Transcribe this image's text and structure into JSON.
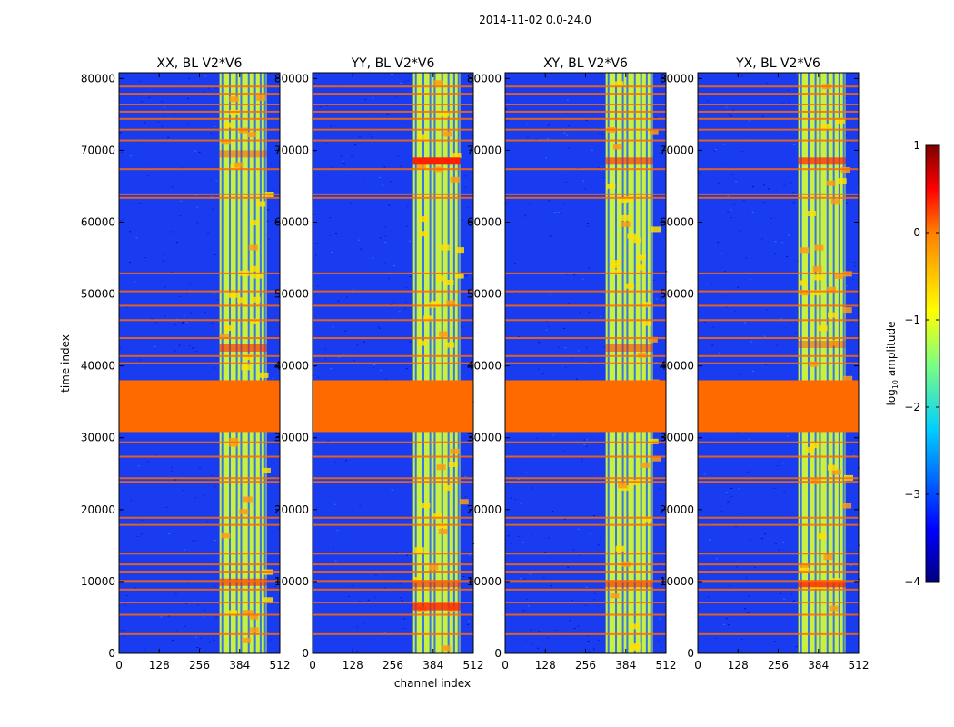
{
  "chart_data": {
    "type": "heatmap",
    "suptitle": "2014-11-02 0.0-24.0",
    "xlabel": "channel index",
    "ylabel": "time index",
    "xlim": [
      0,
      512
    ],
    "ylim": [
      0,
      80800
    ],
    "xticks": [
      "0",
      "128",
      "256",
      "384",
      "512"
    ],
    "yticks": [
      "0",
      "10000",
      "20000",
      "30000",
      "40000",
      "50000",
      "60000",
      "70000",
      "80000"
    ],
    "panels": [
      {
        "title": "XX, BL V2*V6",
        "polarization": "XX"
      },
      {
        "title": "YY, BL V2*V6",
        "polarization": "YY"
      },
      {
        "title": "XY, BL V2*V6",
        "polarization": "XY"
      },
      {
        "title": "YX, BL V2*V6",
        "polarization": "YX"
      }
    ],
    "bright_channel_band": [
      320,
      470
    ],
    "flagged_time_range": [
      30800,
      38000
    ],
    "colorbar": {
      "label": "log10 amplitude",
      "label_base": "log",
      "label_sub": "10",
      "label_rest": " amplitude",
      "range": [
        -4,
        1
      ],
      "ticks": [
        "−4",
        "−3",
        "−2",
        "−1",
        "0",
        "1"
      ],
      "colormap": "jet"
    },
    "colors": {
      "background": "#1a3cf0",
      "band_fill": "#c8f040",
      "flag": "#ff6a00",
      "colormap_stops": [
        "#00007f",
        "#0000ff",
        "#007fff",
        "#00ffff",
        "#7fff7f",
        "#ffff00",
        "#ff7f00",
        "#ff0000",
        "#7f0000"
      ]
    }
  }
}
